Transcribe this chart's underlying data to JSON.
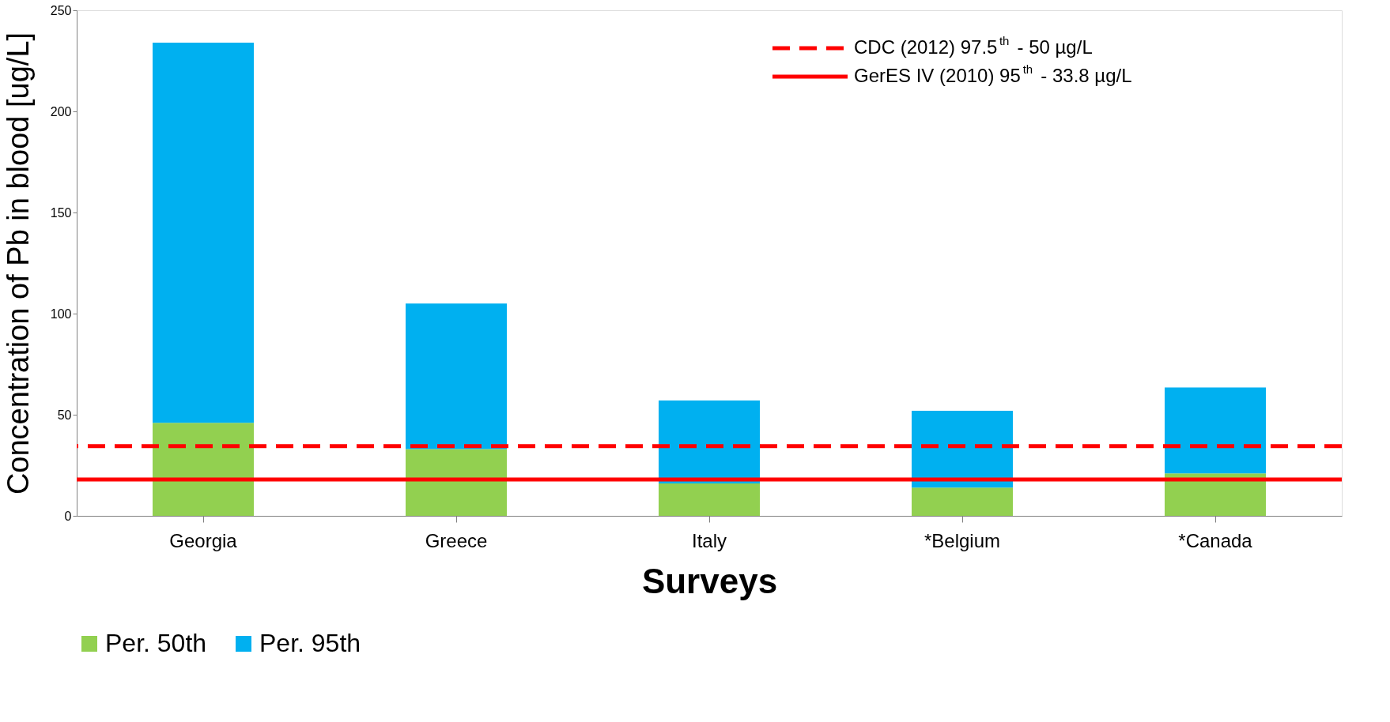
{
  "chart_data": {
    "type": "bar",
    "stacked": true,
    "xlabel": "Surveys",
    "ylabel": "Concentration of Pb in blood [ug/L]",
    "categories": [
      "Georgia",
      "Greece",
      "Italy",
      "*Belgium",
      "*Canada"
    ],
    "series": [
      {
        "name": "Per. 50th",
        "color": "#92d050",
        "values": [
          46,
          33,
          16,
          14,
          21
        ]
      },
      {
        "name": "Per. 95th",
        "color": "#00b0f0",
        "values": [
          188,
          72,
          41,
          38,
          42.5
        ]
      }
    ],
    "ylim": [
      0,
      250
    ],
    "yticks": [
      0,
      50,
      100,
      150,
      200,
      250
    ],
    "grid": false,
    "legend": "bottom",
    "ref_lines": [
      {
        "axis": "y",
        "value": 34.5,
        "label": "CDC (2012) 97.5$^{th}$ - 50 µg/L",
        "color": "#ff0000",
        "line_style": "dashed"
      },
      {
        "axis": "y",
        "value": 18,
        "label": "GerES IV (2010) 95$^{th}$ - 33.8 µg/L",
        "color": "#ff0000",
        "line_style": "solid"
      }
    ]
  }
}
